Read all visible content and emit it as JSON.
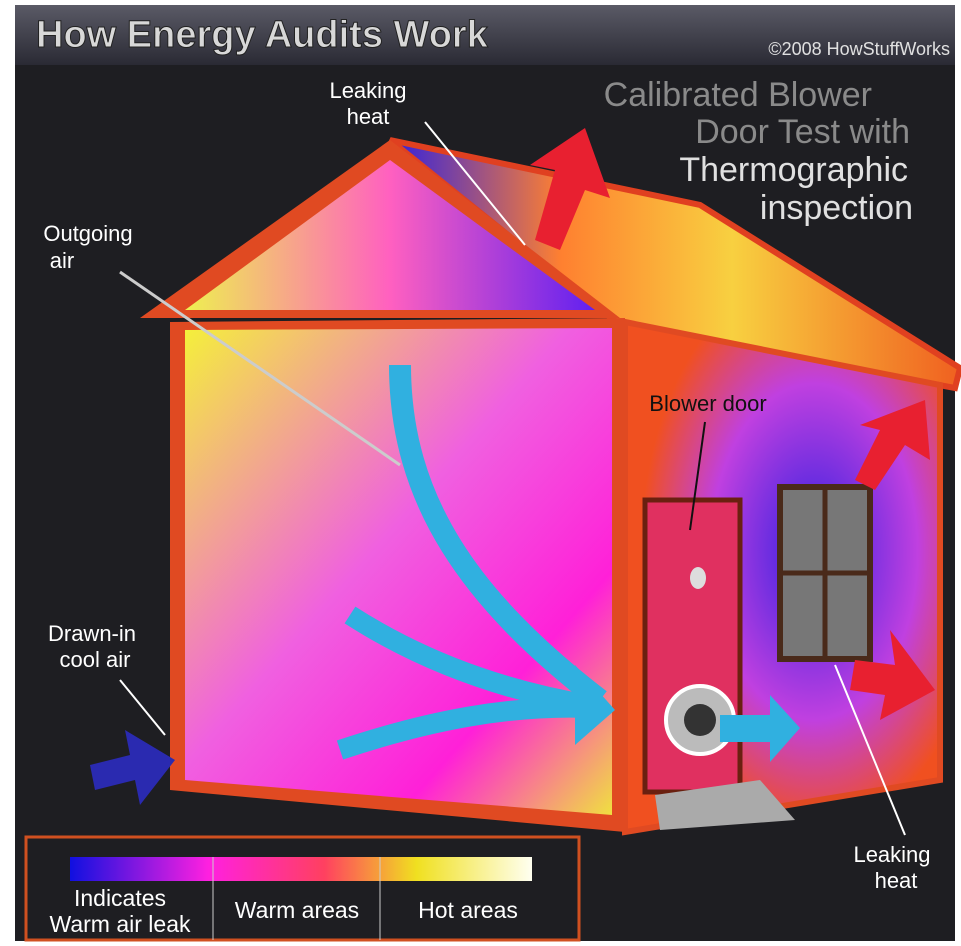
{
  "header": {
    "title": "How Energy Audits Work",
    "credit": "©2008 HowStuffWorks"
  },
  "subtitle": {
    "lines": [
      "Calibrated Blower",
      "Door Test with",
      "Thermographic",
      "inspection"
    ]
  },
  "callouts": [
    {
      "lines": [
        "Leaking",
        "heat"
      ]
    },
    {
      "lines": [
        "Outgoing",
        "air"
      ]
    },
    {
      "lines": [
        "Blower door"
      ]
    },
    {
      "lines": [
        "Drawn-in",
        "cool air"
      ]
    },
    {
      "lines": [
        "Leaking",
        "heat"
      ]
    }
  ],
  "legend": {
    "items": [
      {
        "lines": [
          "Indicates",
          "Warm air leak"
        ]
      },
      {
        "lines": [
          "Warm areas"
        ]
      },
      {
        "lines": [
          "Hot areas"
        ]
      }
    ]
  }
}
